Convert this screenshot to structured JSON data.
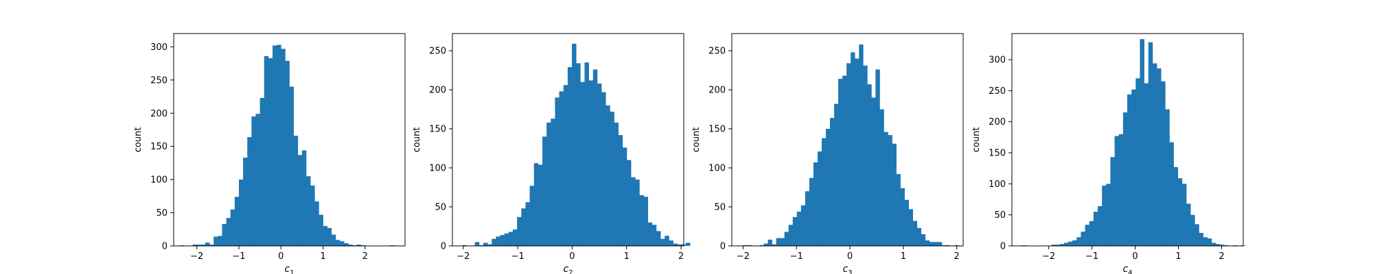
{
  "figure": {
    "background": "#ffffff",
    "bar_color": "#1f77b4"
  },
  "chart_data": [
    {
      "type": "bar",
      "xlabel": "c",
      "xlabel_subscript": "1",
      "ylabel": "count",
      "xlim": [
        -2.55,
        2.95
      ],
      "ylim": [
        0,
        320
      ],
      "xticks": [
        -2,
        -1,
        0,
        1,
        2
      ],
      "yticks": [
        0,
        50,
        100,
        150,
        200,
        250,
        300
      ],
      "bins": {
        "start": -2.4,
        "width": 0.1,
        "values": [
          1,
          0,
          0,
          2,
          2,
          2,
          5,
          2,
          14,
          15,
          33,
          42,
          55,
          74,
          100,
          133,
          164,
          195,
          199,
          223,
          286,
          283,
          302,
          303,
          297,
          279,
          240,
          166,
          137,
          144,
          105,
          91,
          67,
          47,
          30,
          27,
          17,
          9,
          7,
          4,
          2,
          1,
          2,
          1,
          0,
          0,
          0,
          0,
          0,
          0,
          1
        ]
      }
    },
    {
      "type": "bar",
      "xlabel": "c",
      "xlabel_subscript": "2",
      "ylabel": "count",
      "xlim": [
        -2.2,
        2.05
      ],
      "ylim": [
        0,
        272
      ],
      "xticks": [
        -2,
        -1,
        0,
        1,
        2
      ],
      "yticks": [
        0,
        50,
        100,
        150,
        200,
        250
      ],
      "bins": {
        "start": -2.02,
        "width": 0.0775,
        "values": [
          1,
          0,
          0,
          5,
          1,
          4,
          2,
          9,
          12,
          14,
          16,
          18,
          21,
          37,
          48,
          56,
          77,
          106,
          104,
          140,
          158,
          163,
          190,
          198,
          206,
          229,
          259,
          234,
          210,
          235,
          212,
          226,
          208,
          197,
          180,
          172,
          158,
          142,
          126,
          110,
          88,
          85,
          65,
          63,
          30,
          27,
          19,
          9,
          13,
          7,
          3,
          2,
          2,
          4
        ]
      }
    },
    {
      "type": "bar",
      "xlabel": "c",
      "xlabel_subscript": "3",
      "ylabel": "count",
      "xlim": [
        -2.21,
        2.12
      ],
      "ylim": [
        0,
        272
      ],
      "xticks": [
        -2,
        -1,
        0,
        1,
        2
      ],
      "yticks": [
        0,
        50,
        100,
        150,
        200,
        250
      ],
      "bins": {
        "start": -2.0,
        "width": 0.0775,
        "values": [
          1,
          1,
          0,
          0,
          1,
          3,
          8,
          2,
          10,
          10,
          18,
          27,
          37,
          44,
          52,
          70,
          87,
          107,
          121,
          138,
          150,
          164,
          182,
          214,
          218,
          234,
          248,
          240,
          258,
          231,
          207,
          190,
          226,
          175,
          146,
          142,
          131,
          92,
          74,
          59,
          47,
          32,
          23,
          15,
          7,
          5,
          5,
          5,
          1,
          1,
          0,
          1
        ]
      }
    },
    {
      "type": "bar",
      "xlabel": "c",
      "xlabel_subscript": "4",
      "ylabel": "count",
      "xlim": [
        -2.85,
        2.5
      ],
      "ylim": [
        0,
        342
      ],
      "xticks": [
        -2,
        -1,
        0,
        1,
        2
      ],
      "yticks": [
        0,
        50,
        100,
        150,
        200,
        250,
        300
      ],
      "bins": {
        "start": -2.62,
        "width": 0.0975,
        "values": [
          1,
          0,
          0,
          0,
          0,
          0,
          0,
          2,
          2,
          3,
          5,
          7,
          9,
          14,
          23,
          34,
          40,
          55,
          64,
          97,
          100,
          143,
          177,
          180,
          215,
          244,
          252,
          270,
          333,
          262,
          328,
          294,
          286,
          265,
          220,
          167,
          127,
          109,
          100,
          68,
          50,
          35,
          21,
          14,
          12,
          5,
          3,
          2,
          1,
          0,
          1,
          0,
          1
        ]
      }
    }
  ]
}
